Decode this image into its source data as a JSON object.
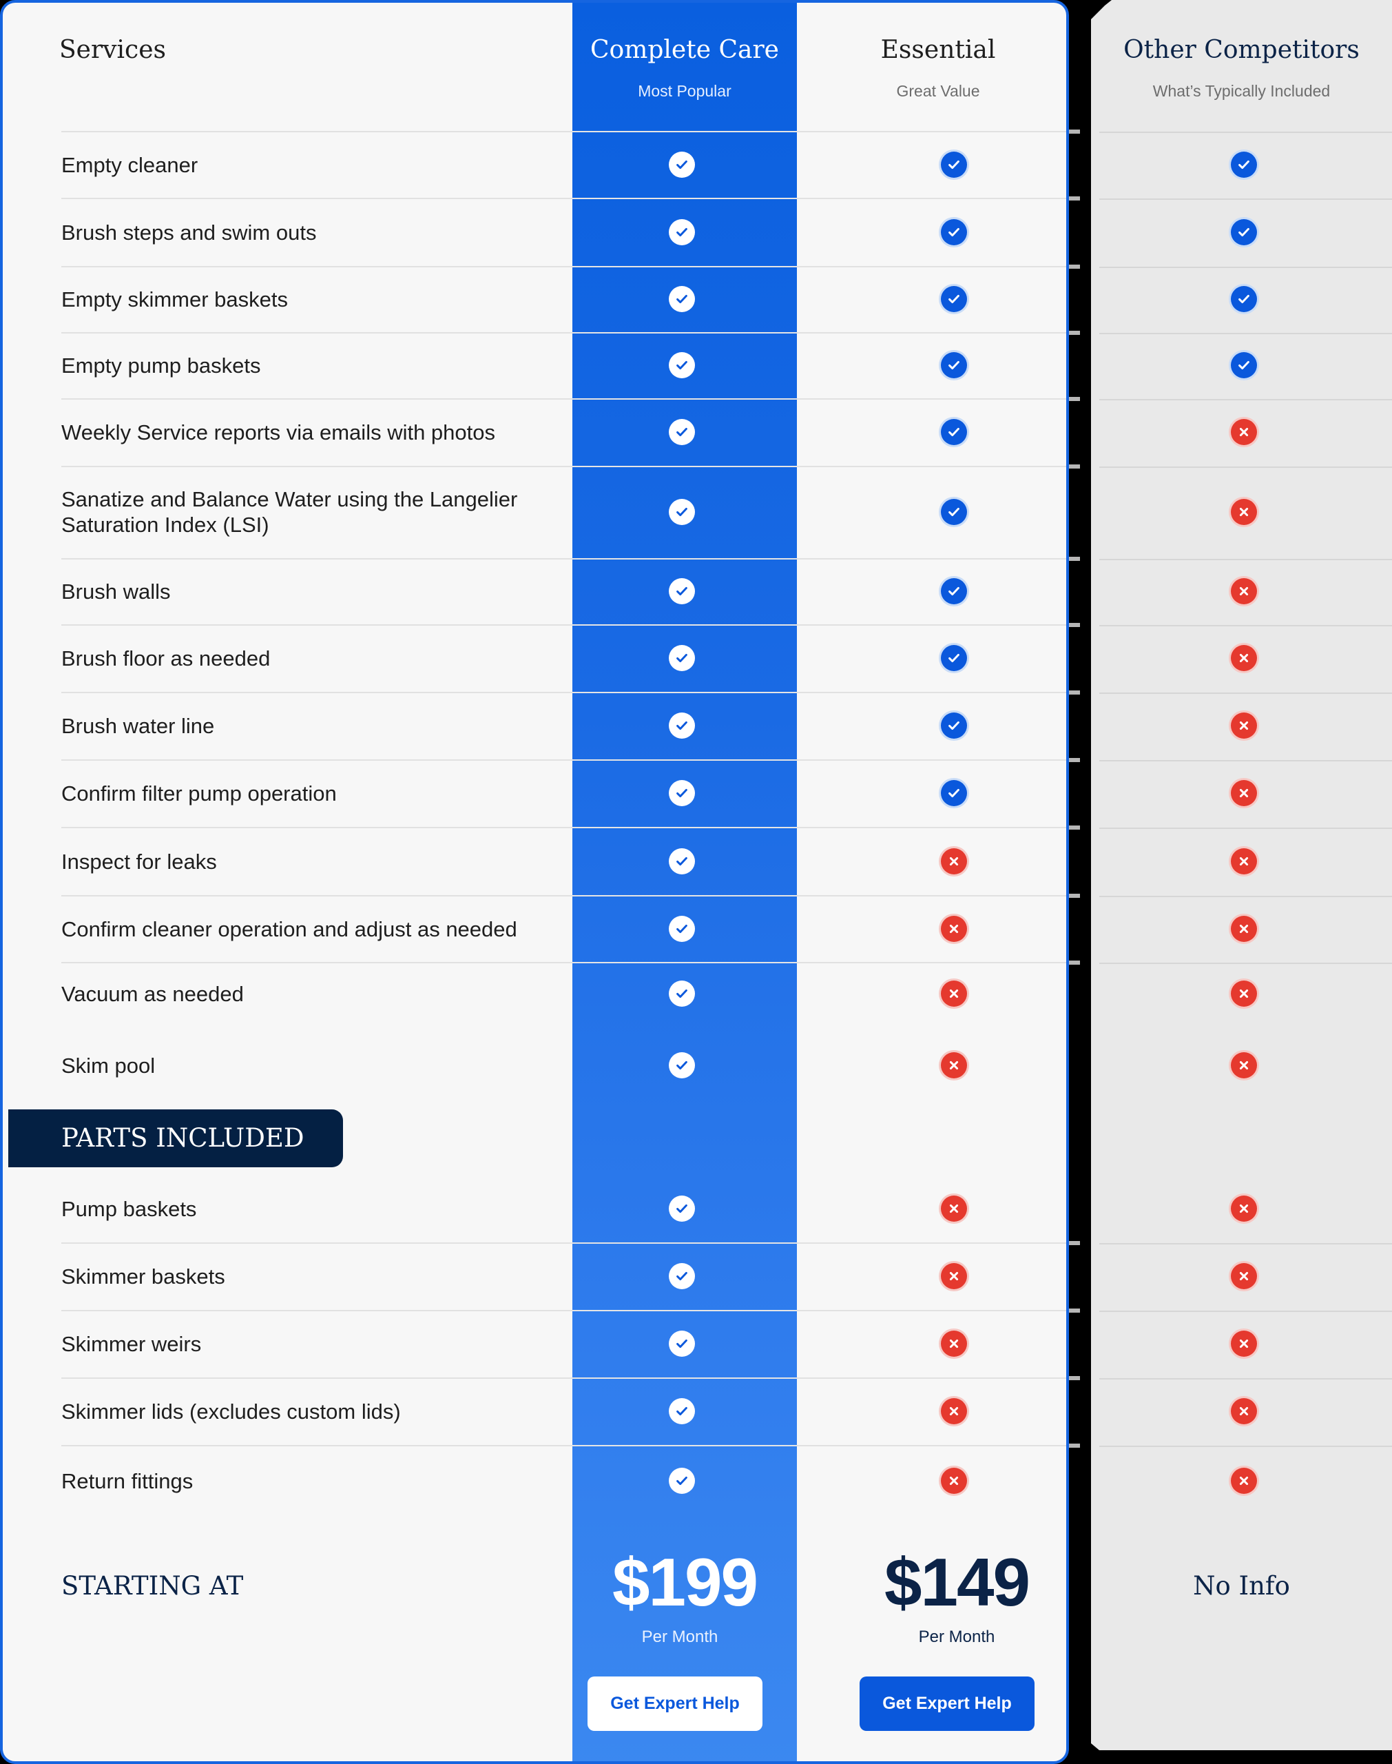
{
  "header": {
    "services_label": "Services",
    "plans": [
      {
        "name": "Complete Care",
        "subtitle": "Most Popular"
      },
      {
        "name": "Essential",
        "subtitle": "Great Value"
      },
      {
        "name": "Other Competitors",
        "subtitle": "What’s Typically Included"
      }
    ]
  },
  "services": [
    {
      "label": "Empty cleaner",
      "complete_care": "check",
      "essential": "check",
      "competitors": "check"
    },
    {
      "label": "Brush steps and swim outs",
      "complete_care": "check",
      "essential": "check",
      "competitors": "check"
    },
    {
      "label": "Empty skimmer baskets",
      "complete_care": "check",
      "essential": "check",
      "competitors": "check"
    },
    {
      "label": "Empty pump baskets",
      "complete_care": "check",
      "essential": "check",
      "competitors": "check"
    },
    {
      "label": "Weekly Service reports via emails with photos",
      "complete_care": "check",
      "essential": "check",
      "competitors": "x"
    },
    {
      "label": "Sanatize and Balance Water using the Langelier Saturation Index (LSI)",
      "complete_care": "check",
      "essential": "check",
      "competitors": "x"
    },
    {
      "label": "Brush walls",
      "complete_care": "check",
      "essential": "check",
      "competitors": "x"
    },
    {
      "label": "Brush floor as needed",
      "complete_care": "check",
      "essential": "check",
      "competitors": "x"
    },
    {
      "label": "Brush water line",
      "complete_care": "check",
      "essential": "check",
      "competitors": "x"
    },
    {
      "label": "Confirm filter pump operation",
      "complete_care": "check",
      "essential": "check",
      "competitors": "x"
    },
    {
      "label": "Inspect for leaks",
      "complete_care": "check",
      "essential": "x",
      "competitors": "x"
    },
    {
      "label": "Confirm cleaner operation and adjust as needed",
      "complete_care": "check",
      "essential": "x",
      "competitors": "x"
    },
    {
      "label": "Vacuum as needed",
      "complete_care": "check",
      "essential": "x",
      "competitors": "x"
    },
    {
      "label": "Skim pool",
      "complete_care": "check",
      "essential": "x",
      "competitors": "x"
    }
  ],
  "parts_section": {
    "title": "PARTS INCLUDED",
    "items": [
      {
        "label": "Pump baskets",
        "complete_care": "check",
        "essential": "x",
        "competitors": "x"
      },
      {
        "label": "Skimmer baskets",
        "complete_care": "check",
        "essential": "x",
        "competitors": "x"
      },
      {
        "label": "Skimmer weirs",
        "complete_care": "check",
        "essential": "x",
        "competitors": "x"
      },
      {
        "label": "Skimmer lids (excludes custom lids)",
        "complete_care": "check",
        "essential": "x",
        "competitors": "x"
      },
      {
        "label": "Return fittings",
        "complete_care": "check",
        "essential": "x",
        "competitors": "x"
      }
    ]
  },
  "pricing": {
    "label": "STARTING AT",
    "complete_care": {
      "price": "$199",
      "period": "Per Month",
      "cta": "Get Expert Help"
    },
    "essential": {
      "price": "$149",
      "period": "Per Month",
      "cta": "Get Expert Help"
    },
    "competitors": {
      "text": "No Info"
    }
  },
  "colors": {
    "brand_blue": "#0a5fdf",
    "navy": "#042043",
    "check_blue": "#0a58dc",
    "x_red": "#e5392e",
    "card_bg": "#f7f7f7",
    "competitor_bg": "#e9e9e9"
  }
}
